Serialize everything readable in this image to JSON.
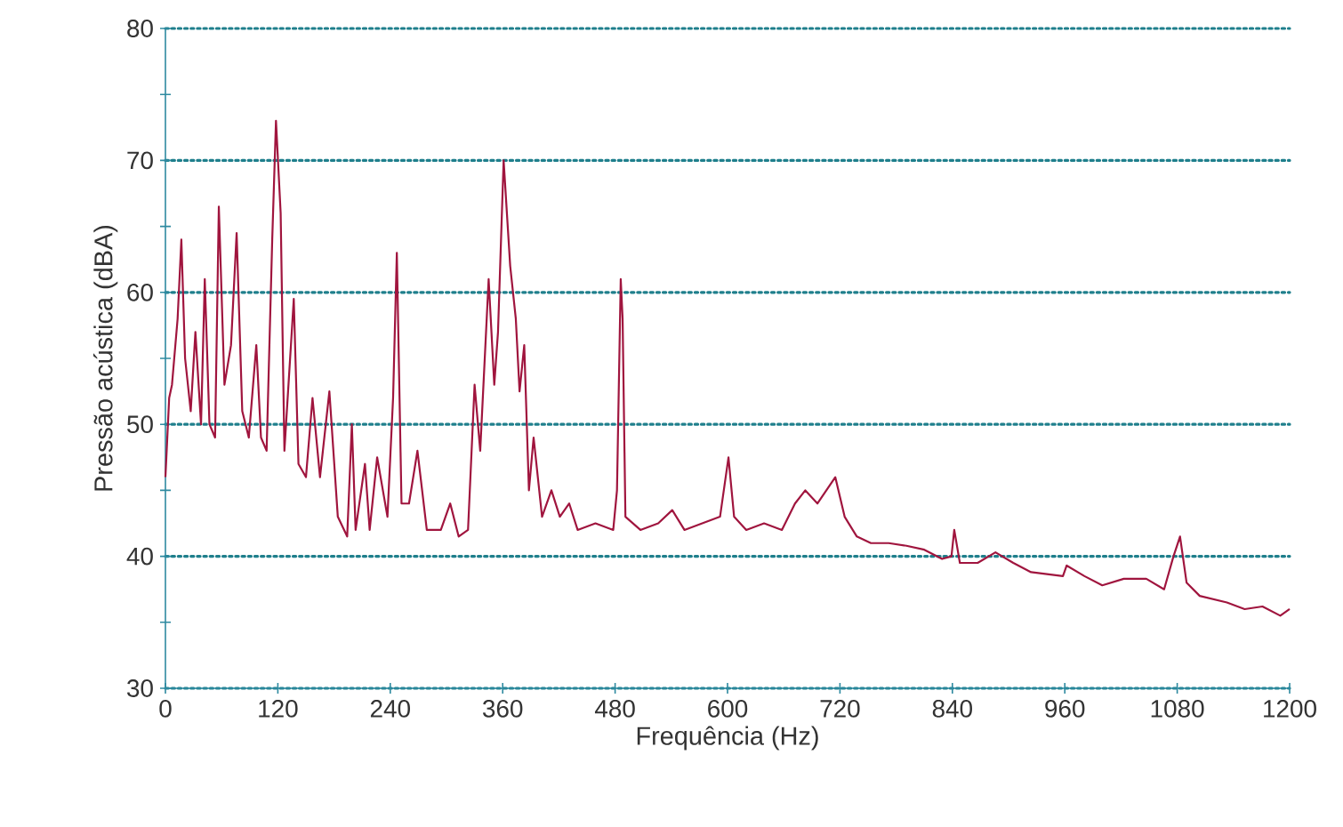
{
  "chart_data": {
    "type": "line",
    "xlabel": "Frequência (Hz)",
    "ylabel": "Pressão acústica (dBA)",
    "xlim": [
      0,
      1200
    ],
    "ylim": [
      30,
      80
    ],
    "xticks": [
      0,
      120,
      240,
      360,
      480,
      600,
      720,
      840,
      960,
      1080,
      1200
    ],
    "yticks": [
      30,
      {
        "value": 35,
        "label": null
      },
      40,
      {
        "value": 45,
        "label": null
      },
      50,
      {
        "value": 55,
        "label": null
      },
      60,
      {
        "value": 65,
        "label": null
      },
      70,
      {
        "value": 75,
        "label": null
      },
      80
    ],
    "grid": "y",
    "series": [
      {
        "color": "#a0153e",
        "x": [
          0,
          4,
          7,
          13,
          17,
          21,
          27,
          32,
          38,
          42,
          47,
          53,
          57,
          63,
          70,
          76,
          82,
          89,
          97,
          102,
          108,
          114,
          118,
          123,
          127,
          137,
          142,
          150,
          157,
          165,
          175,
          184,
          194,
          199,
          203,
          213,
          218,
          226,
          237,
          243,
          247,
          252,
          260,
          269,
          279,
          294,
          304,
          313,
          323,
          330,
          336,
          345,
          351,
          355,
          361,
          368,
          374,
          378,
          383,
          388,
          393,
          402,
          412,
          421,
          431,
          440,
          459,
          478,
          482,
          486,
          488,
          491,
          507,
          526,
          541,
          554,
          573,
          592,
          601,
          607,
          620,
          639,
          658,
          672,
          683,
          696,
          715,
          725,
          738,
          753,
          772,
          791,
          810,
          829,
          839,
          842,
          848,
          867,
          886,
          905,
          924,
          958,
          962,
          981,
          1000,
          1023,
          1047,
          1066,
          1076,
          1083,
          1090,
          1104,
          1133,
          1152,
          1171,
          1190,
          1200
        ],
        "values": [
          46,
          52,
          53,
          58,
          64,
          55,
          51,
          57,
          50,
          61,
          50,
          49,
          66.5,
          53,
          56,
          64.5,
          51,
          49,
          56,
          49,
          48,
          64,
          73,
          66,
          48,
          59.5,
          47,
          46,
          52,
          46,
          52.5,
          43,
          41.5,
          50,
          42,
          47,
          42,
          47.5,
          43,
          52,
          63,
          44,
          44,
          48,
          42,
          42,
          44,
          41.5,
          42,
          53,
          48,
          61,
          53,
          57,
          70,
          62,
          58,
          52.5,
          56,
          45,
          49,
          43,
          45,
          43,
          44,
          42,
          42.5,
          42,
          45,
          61,
          58,
          43,
          42,
          42.5,
          43.5,
          42,
          42.5,
          43,
          47.5,
          43,
          42,
          42.5,
          42,
          44,
          45,
          44,
          46,
          43,
          41.5,
          41,
          41,
          40.8,
          40.5,
          39.8,
          40,
          42,
          39.5,
          39.5,
          40.3,
          39.5,
          38.8,
          38.5,
          39.3,
          38.5,
          37.8,
          38.3,
          38.3,
          37.5,
          40,
          41.5,
          38,
          37,
          36.5,
          36,
          36.2,
          35.5,
          36
        ]
      }
    ]
  }
}
